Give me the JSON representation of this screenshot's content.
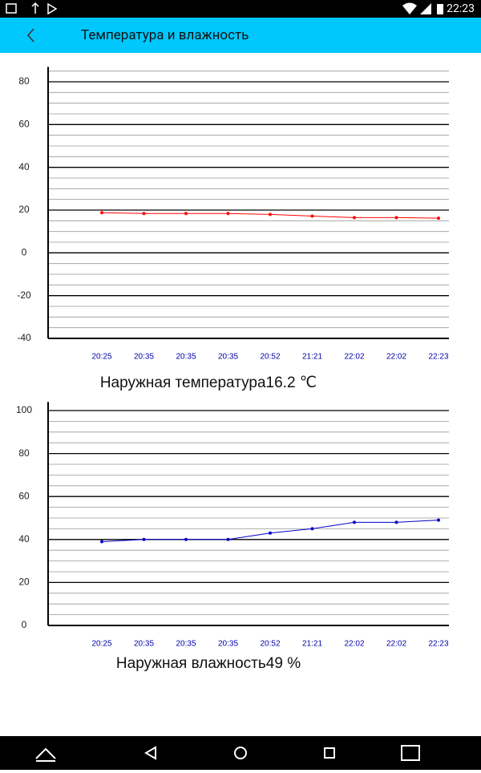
{
  "status_bar": {
    "time": "22:23"
  },
  "app_bar": {
    "title": "Температура и влажность"
  },
  "chart_data": [
    {
      "type": "line",
      "caption": "Наружная температура16.2 ℃",
      "categories": [
        "20:25",
        "20:35",
        "20:35",
        "20:35",
        "20:52",
        "21:21",
        "22:02",
        "22:02",
        "22:23"
      ],
      "series": [
        {
          "color": "#ff0000",
          "values": [
            18.8,
            18.4,
            18.4,
            18.4,
            18.0,
            17.2,
            16.5,
            16.5,
            16.2
          ]
        }
      ],
      "ylim": [
        -40,
        87
      ],
      "yticks": [
        -40,
        -20,
        0,
        20,
        40,
        60,
        80
      ],
      "grid": true,
      "minor_step": 5
    },
    {
      "type": "line",
      "caption": "Наружная влажность49 %",
      "categories": [
        "20:25",
        "20:35",
        "20:35",
        "20:35",
        "20:52",
        "21:21",
        "22:02",
        "22:02",
        "22:23"
      ],
      "series": [
        {
          "color": "#0000cc",
          "values": [
            39,
            40,
            40,
            40,
            43,
            45,
            48,
            48,
            49
          ]
        }
      ],
      "ylim": [
        0,
        104
      ],
      "yticks": [
        0,
        20,
        40,
        60,
        80,
        100
      ],
      "grid": true,
      "minor_step": 5
    }
  ]
}
